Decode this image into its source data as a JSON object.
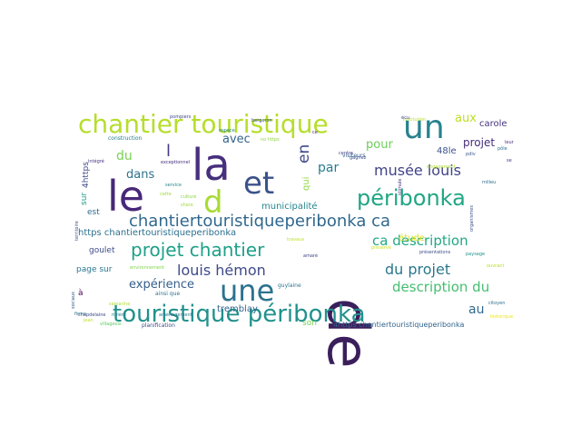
{
  "cloud": {
    "words": [
      {
        "text": "de",
        "color": "#3b1f5c"
      },
      {
        "text": "le",
        "color": "#482878"
      },
      {
        "text": "la",
        "color": "#472f7d"
      },
      {
        "text": "et",
        "color": "#3b528b"
      },
      {
        "text": "d",
        "color": "#a8db34"
      },
      {
        "text": "un",
        "color": "#26828e"
      },
      {
        "text": "une",
        "color": "#2c728e"
      },
      {
        "text": "chantier touristique",
        "color": "#b5de2b"
      },
      {
        "text": "touristique péribonka",
        "color": "#21918c"
      },
      {
        "text": "péribonka",
        "color": "#21a685"
      },
      {
        "text": "projet chantier",
        "color": "#1fa088"
      },
      {
        "text": "chantiertouristiqueperibonka ca",
        "color": "#31688e"
      },
      {
        "text": "louis hémon",
        "color": "#3e4a89"
      },
      {
        "text": "musée louis",
        "color": "#414487"
      },
      {
        "text": "du projet",
        "color": "#2a788e"
      },
      {
        "text": "ca description",
        "color": "#22a884"
      },
      {
        "text": "description du",
        "color": "#44bf70"
      },
      {
        "text": "expérience",
        "color": "#355f8d"
      },
      {
        "text": "en",
        "color": "#3e4989"
      },
      {
        "text": "l",
        "color": "#443983"
      },
      {
        "text": "par",
        "color": "#287c8e"
      },
      {
        "text": "dans",
        "color": "#2c738e"
      },
      {
        "text": "avec",
        "color": "#33638d"
      },
      {
        "text": "du",
        "color": "#7ad151"
      },
      {
        "text": "pour",
        "color": "#6ece58"
      },
      {
        "text": "aux",
        "color": "#bddf26"
      },
      {
        "text": "projet",
        "color": "#472d7b"
      },
      {
        "text": "au",
        "color": "#31688e"
      },
      {
        "text": "https chantiertouristiqueperibonka",
        "color": "#2d708e"
      },
      {
        "text": "carole",
        "color": "#46327e"
      },
      {
        "text": "48le",
        "color": "#3b528b"
      },
      {
        "text": "étude",
        "color": "#d8e219"
      },
      {
        "text": "qui",
        "color": "#8fd744"
      },
      {
        "text": "municipalité",
        "color": "#24868e"
      },
      {
        "text": "tremblay",
        "color": "#32648e"
      },
      {
        "text": "goulet",
        "color": "#3e4c8a"
      },
      {
        "text": "page sur",
        "color": "#2a768e"
      },
      {
        "text": "sur",
        "color": "#1f9e89"
      },
      {
        "text": "est",
        "color": "#2f6b8e"
      },
      {
        "text": "à",
        "color": "#440154"
      },
      {
        "text": "4https",
        "color": "#3f4788"
      },
      {
        "text": "son",
        "color": "#75d054"
      },
      {
        "text": "4https chantiertouristiqueperibonka",
        "color": "#32658e"
      },
      {
        "text": "ainsi que",
        "color": "#2d718e"
      },
      {
        "text": "guylaine",
        "color": "#2c738e"
      },
      {
        "text": "planification",
        "color": "#3e4c8a"
      },
      {
        "text": "visiteurs",
        "color": "#355e8d"
      },
      {
        "text": "construction",
        "color": "#277f8e"
      },
      {
        "text": "exceptionnel",
        "color": "#46307e"
      },
      {
        "text": "service",
        "color": "#25858e"
      },
      {
        "text": "culture",
        "color": "#8bd646"
      },
      {
        "text": "share",
        "color": "#a5db36"
      },
      {
        "text": "cette",
        "color": "#9dd93b"
      },
      {
        "text": "pompiers",
        "color": "#3f4889"
      },
      {
        "text": "bergeron",
        "color": "#3d4d8a"
      },
      {
        "text": "institution",
        "color": "#b8de29"
      },
      {
        "text": "espace",
        "color": "#25838e"
      },
      {
        "text": "no https",
        "color": "#8ed645"
      },
      {
        "text": "centre",
        "color": "#424086"
      },
      {
        "text": "gagnez",
        "color": "#3b528b"
      },
      {
        "text": "engagement",
        "color": "#b0dd2f"
      },
      {
        "text": "milieu",
        "color": "#2e6e8e"
      },
      {
        "text": "organismes",
        "color": "#3b518b"
      },
      {
        "text": "préservé",
        "color": "#d2e21b"
      },
      {
        "text": "présentations",
        "color": "#3d4e8a"
      },
      {
        "text": "paysage",
        "color": "#20928c"
      },
      {
        "text": "pdlv",
        "color": "#38598c"
      },
      {
        "text": "pôle",
        "color": "#2e6f8e"
      },
      {
        "text": "intégré",
        "color": "#46307e"
      },
      {
        "text": "territoire",
        "color": "#3e4a89"
      },
      {
        "text": "environnement",
        "color": "#7fd34e"
      },
      {
        "text": "rivière",
        "color": "#2a788e"
      },
      {
        "text": "villageois",
        "color": "#5ec962"
      },
      {
        "text": "chapdelaine",
        "color": "#3e4989"
      },
      {
        "text": "samarine",
        "color": "#b2dd2d"
      },
      {
        "text": "aménagement",
        "color": "#2b758e"
      },
      {
        "text": "travaux",
        "color": "#b8de29"
      },
      {
        "text": "amaré",
        "color": "#414487"
      },
      {
        "text": "citoyen",
        "color": "#2f6c8e"
      },
      {
        "text": "ouvrant",
        "color": "#b5de2b"
      },
      {
        "text": "historique",
        "color": "#ece51b"
      },
      {
        "text": "sociaux",
        "color": "#38588c"
      },
      {
        "text": "firme",
        "color": "#2a788e"
      },
      {
        "text": "jean",
        "color": "#c0df25"
      },
      {
        "text": "leur",
        "color": "#472c7a"
      },
      {
        "text": "se",
        "color": "#443983"
      },
      {
        "text": "stimule",
        "color": "#46327e"
      },
      {
        "text": "écu",
        "color": "#3e4989"
      },
      {
        "text": "ce",
        "color": "#482576"
      }
    ]
  }
}
